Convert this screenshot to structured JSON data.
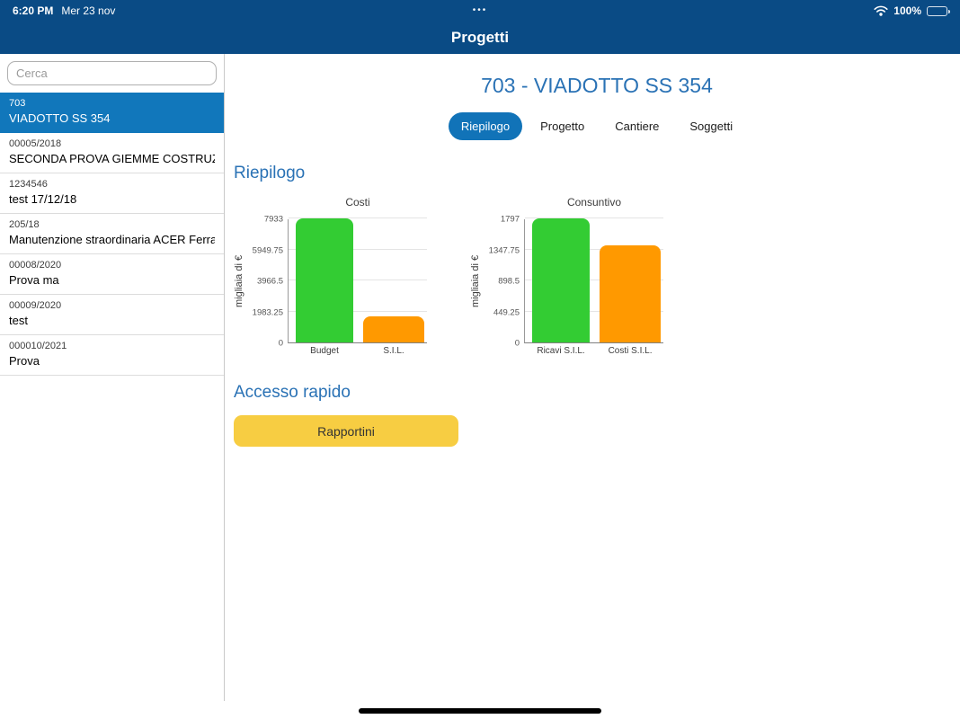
{
  "status_bar": {
    "time": "6:20 PM",
    "date": "Mer 23 nov",
    "battery": "100%"
  },
  "nav": {
    "title": "Progetti"
  },
  "sidebar": {
    "search_placeholder": "Cerca",
    "items": [
      {
        "code": "703",
        "name": "VIADOTTO SS 354",
        "selected": true
      },
      {
        "code": "00005/2018",
        "name": "SECONDA PROVA GIEMME COSTRUZIONI",
        "selected": false
      },
      {
        "code": "1234546",
        "name": "test 17/12/18",
        "selected": false
      },
      {
        "code": "205/18",
        "name": "Manutenzione straordinaria ACER Ferrara",
        "selected": false
      },
      {
        "code": "00008/2020",
        "name": "Prova ma",
        "selected": false
      },
      {
        "code": "00009/2020",
        "name": "test",
        "selected": false
      },
      {
        "code": "000010/2021",
        "name": "Prova",
        "selected": false
      }
    ]
  },
  "main": {
    "title": "703 - VIADOTTO SS 354",
    "tabs": [
      {
        "label": "Riepilogo",
        "selected": true
      },
      {
        "label": "Progetto",
        "selected": false
      },
      {
        "label": "Cantiere",
        "selected": false
      },
      {
        "label": "Soggetti",
        "selected": false
      }
    ],
    "section_title": "Riepilogo",
    "quick_access_title": "Accesso rapido",
    "quick_access_button": "Rapportini"
  },
  "chart_data": [
    {
      "type": "bar",
      "title": "Costi",
      "ylabel": "migliaia di €",
      "categories": [
        "Budget",
        "S.I.L."
      ],
      "values": [
        7933,
        1640
      ],
      "colors": [
        "#33cc33",
        "#ff9900"
      ],
      "yticks": [
        0,
        1983.25,
        3966.5,
        5949.75,
        7933
      ],
      "ylim": [
        0,
        7933
      ],
      "grid": true,
      "legend": "none"
    },
    {
      "type": "bar",
      "title": "Consuntivo",
      "ylabel": "migliaia di €",
      "categories": [
        "Ricavi S.I.L.",
        "Costi S.I.L."
      ],
      "values": [
        1797,
        1410
      ],
      "colors": [
        "#33cc33",
        "#ff9900"
      ],
      "yticks": [
        0,
        449.25,
        898.5,
        1347.75,
        1797
      ],
      "ylim": [
        0,
        1797
      ],
      "grid": true,
      "legend": "none"
    }
  ],
  "colors": {
    "header_navy": "#0a4b85",
    "accent_blue": "#2a72b5",
    "selected_row_blue": "#1177bb",
    "tab_selected_blue": "#1173b8",
    "bar_green": "#33cc33",
    "bar_orange": "#ff9900",
    "button_yellow": "#f7cd42"
  }
}
